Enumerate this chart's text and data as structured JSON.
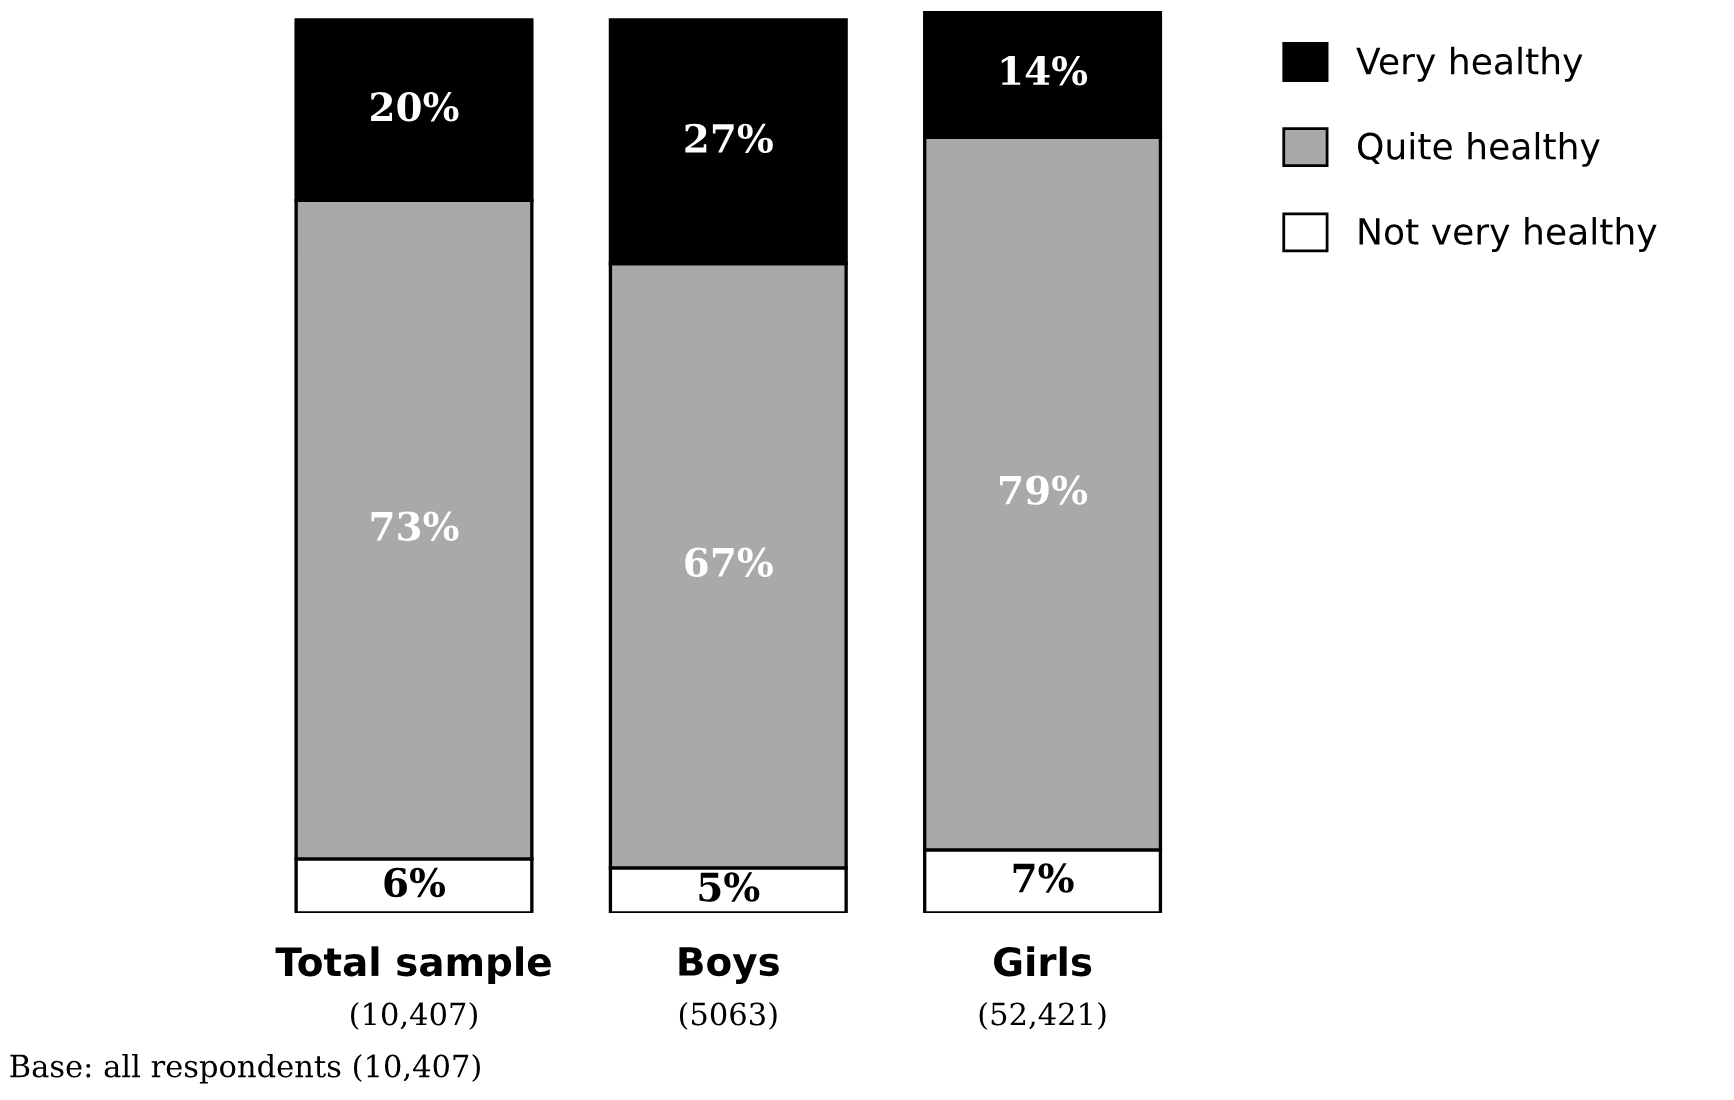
{
  "chart_data": {
    "type": "bar",
    "stacked": true,
    "categories": [
      "Total sample\n(10,407)",
      "Boys\n(5063)",
      "Girls\n(52,421)"
    ],
    "series": [
      {
        "name": "Not very healthy",
        "color": "#ffffff",
        "values": [
          6,
          5,
          7
        ],
        "value_labels": [
          "6%",
          "5%",
          "7%"
        ]
      },
      {
        "name": "Quite healthy",
        "color": "#a9a9a9",
        "values": [
          73,
          67,
          79
        ],
        "value_labels": [
          "73%",
          "67%",
          "79%"
        ]
      },
      {
        "name": "Very healthy",
        "color": "#000000",
        "values": [
          20,
          27,
          14
        ],
        "value_labels": [
          "20%",
          "27%",
          "14%"
        ]
      }
    ],
    "legend": "top right",
    "grid": false,
    "tick_labels": "x",
    "annotations": [
      "Base: all respondents (10,407)"
    ]
  }
}
